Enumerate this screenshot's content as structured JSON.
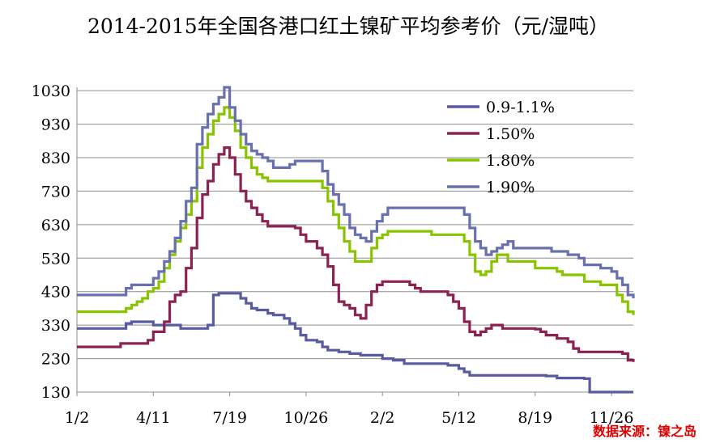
{
  "chart_data": {
    "type": "line",
    "title": "2014-2015年全国各港口红土镍矿平均参考价（元/湿吨）",
    "xlabel": "",
    "ylabel": "",
    "x_tick_labels": [
      "1/2",
      "4/11",
      "7/19",
      "10/26",
      "2/2",
      "5/12",
      "8/19",
      "11/26"
    ],
    "x_tick_index": [
      0,
      14,
      28,
      42,
      56,
      70,
      84,
      98
    ],
    "y_ticks": [
      130,
      230,
      330,
      430,
      530,
      630,
      730,
      830,
      930,
      1030
    ],
    "ylim": [
      130,
      1040
    ],
    "xlim": [
      0,
      102
    ],
    "grid": true,
    "legend_position": "top-right",
    "series": [
      {
        "name": "0.9-1.1%",
        "color": "#5a5aa0",
        "points": [
          [
            0,
            320
          ],
          [
            8,
            320
          ],
          [
            9,
            335
          ],
          [
            10,
            340
          ],
          [
            13,
            340
          ],
          [
            14,
            330
          ],
          [
            18,
            330
          ],
          [
            19,
            320
          ],
          [
            22,
            320
          ],
          [
            23,
            320
          ],
          [
            24,
            330
          ],
          [
            25,
            420
          ],
          [
            26,
            425
          ],
          [
            29,
            425
          ],
          [
            30,
            410
          ],
          [
            31,
            395
          ],
          [
            32,
            380
          ],
          [
            33,
            375
          ],
          [
            35,
            365
          ],
          [
            36,
            360
          ],
          [
            38,
            350
          ],
          [
            39,
            335
          ],
          [
            40,
            320
          ],
          [
            41,
            300
          ],
          [
            42,
            285
          ],
          [
            44,
            280
          ],
          [
            45,
            265
          ],
          [
            46,
            255
          ],
          [
            48,
            250
          ],
          [
            50,
            245
          ],
          [
            52,
            240
          ],
          [
            55,
            240
          ],
          [
            56,
            230
          ],
          [
            58,
            225
          ],
          [
            60,
            215
          ],
          [
            62,
            215
          ],
          [
            66,
            215
          ],
          [
            68,
            210
          ],
          [
            70,
            200
          ],
          [
            71,
            190
          ],
          [
            72,
            180
          ],
          [
            76,
            180
          ],
          [
            80,
            180
          ],
          [
            83,
            180
          ],
          [
            86,
            178
          ],
          [
            88,
            172
          ],
          [
            91,
            172
          ],
          [
            93,
            170
          ],
          [
            94,
            130
          ],
          [
            98,
            130
          ],
          [
            102,
            130
          ]
        ]
      },
      {
        "name": "1.50%",
        "color": "#8b2252",
        "points": [
          [
            0,
            265
          ],
          [
            7,
            265
          ],
          [
            8,
            275
          ],
          [
            12,
            275
          ],
          [
            13,
            285
          ],
          [
            14,
            310
          ],
          [
            16,
            340
          ],
          [
            17,
            400
          ],
          [
            18,
            420
          ],
          [
            19,
            430
          ],
          [
            20,
            500
          ],
          [
            21,
            560
          ],
          [
            22,
            650
          ],
          [
            23,
            720
          ],
          [
            24,
            760
          ],
          [
            25,
            810
          ],
          [
            26,
            840
          ],
          [
            27,
            860
          ],
          [
            28,
            830
          ],
          [
            29,
            780
          ],
          [
            30,
            730
          ],
          [
            31,
            700
          ],
          [
            32,
            680
          ],
          [
            33,
            660
          ],
          [
            34,
            640
          ],
          [
            35,
            625
          ],
          [
            40,
            620
          ],
          [
            41,
            600
          ],
          [
            42,
            580
          ],
          [
            44,
            560
          ],
          [
            45,
            540
          ],
          [
            46,
            505
          ],
          [
            47,
            450
          ],
          [
            48,
            400
          ],
          [
            49,
            390
          ],
          [
            50,
            380
          ],
          [
            51,
            360
          ],
          [
            52,
            350
          ],
          [
            53,
            390
          ],
          [
            54,
            430
          ],
          [
            55,
            450
          ],
          [
            56,
            460
          ],
          [
            60,
            460
          ],
          [
            61,
            450
          ],
          [
            62,
            440
          ],
          [
            63,
            430
          ],
          [
            67,
            430
          ],
          [
            68,
            420
          ],
          [
            69,
            400
          ],
          [
            70,
            380
          ],
          [
            71,
            340
          ],
          [
            72,
            310
          ],
          [
            73,
            300
          ],
          [
            74,
            310
          ],
          [
            75,
            320
          ],
          [
            76,
            330
          ],
          [
            77,
            330
          ],
          [
            78,
            320
          ],
          [
            81,
            320
          ],
          [
            84,
            318
          ],
          [
            85,
            310
          ],
          [
            86,
            300
          ],
          [
            88,
            290
          ],
          [
            90,
            280
          ],
          [
            91,
            260
          ],
          [
            92,
            250
          ],
          [
            98,
            250
          ],
          [
            100,
            245
          ],
          [
            101,
            225
          ],
          [
            102,
            220
          ]
        ]
      },
      {
        "name": "1.80%",
        "color": "#88c400",
        "points": [
          [
            0,
            370
          ],
          [
            8,
            370
          ],
          [
            9,
            380
          ],
          [
            10,
            390
          ],
          [
            11,
            400
          ],
          [
            12,
            410
          ],
          [
            13,
            430
          ],
          [
            14,
            440
          ],
          [
            15,
            460
          ],
          [
            16,
            500
          ],
          [
            17,
            540
          ],
          [
            18,
            580
          ],
          [
            19,
            620
          ],
          [
            20,
            660
          ],
          [
            21,
            700
          ],
          [
            22,
            800
          ],
          [
            23,
            860
          ],
          [
            24,
            900
          ],
          [
            25,
            940
          ],
          [
            26,
            960
          ],
          [
            27,
            980
          ],
          [
            28,
            950
          ],
          [
            29,
            910
          ],
          [
            30,
            860
          ],
          [
            31,
            830
          ],
          [
            32,
            800
          ],
          [
            33,
            780
          ],
          [
            34,
            770
          ],
          [
            35,
            760
          ],
          [
            44,
            760
          ],
          [
            45,
            740
          ],
          [
            46,
            700
          ],
          [
            47,
            660
          ],
          [
            48,
            620
          ],
          [
            49,
            580
          ],
          [
            50,
            550
          ],
          [
            51,
            520
          ],
          [
            53,
            520
          ],
          [
            54,
            560
          ],
          [
            55,
            590
          ],
          [
            56,
            600
          ],
          [
            57,
            610
          ],
          [
            64,
            610
          ],
          [
            65,
            600
          ],
          [
            70,
            600
          ],
          [
            71,
            580
          ],
          [
            72,
            540
          ],
          [
            73,
            490
          ],
          [
            74,
            480
          ],
          [
            75,
            490
          ],
          [
            76,
            520
          ],
          [
            77,
            540
          ],
          [
            78,
            540
          ],
          [
            79,
            520
          ],
          [
            83,
            520
          ],
          [
            84,
            500
          ],
          [
            88,
            490
          ],
          [
            89,
            480
          ],
          [
            92,
            480
          ],
          [
            93,
            460
          ],
          [
            96,
            450
          ],
          [
            98,
            450
          ],
          [
            99,
            420
          ],
          [
            100,
            400
          ],
          [
            101,
            370
          ],
          [
            102,
            360
          ]
        ]
      },
      {
        "name": "1.90%",
        "color": "#6870b0",
        "points": [
          [
            0,
            420
          ],
          [
            8,
            420
          ],
          [
            9,
            440
          ],
          [
            10,
            450
          ],
          [
            13,
            450
          ],
          [
            14,
            470
          ],
          [
            15,
            490
          ],
          [
            16,
            520
          ],
          [
            17,
            550
          ],
          [
            18,
            590
          ],
          [
            19,
            640
          ],
          [
            20,
            700
          ],
          [
            21,
            740
          ],
          [
            22,
            870
          ],
          [
            23,
            920
          ],
          [
            24,
            960
          ],
          [
            25,
            990
          ],
          [
            26,
            1010
          ],
          [
            27,
            1040
          ],
          [
            28,
            980
          ],
          [
            29,
            940
          ],
          [
            30,
            900
          ],
          [
            31,
            870
          ],
          [
            32,
            850
          ],
          [
            33,
            840
          ],
          [
            34,
            830
          ],
          [
            35,
            820
          ],
          [
            36,
            800
          ],
          [
            38,
            800
          ],
          [
            39,
            810
          ],
          [
            40,
            820
          ],
          [
            44,
            820
          ],
          [
            45,
            790
          ],
          [
            46,
            750
          ],
          [
            47,
            720
          ],
          [
            48,
            690
          ],
          [
            49,
            660
          ],
          [
            50,
            620
          ],
          [
            51,
            600
          ],
          [
            52,
            590
          ],
          [
            53,
            580
          ],
          [
            54,
            610
          ],
          [
            55,
            640
          ],
          [
            56,
            660
          ],
          [
            57,
            680
          ],
          [
            64,
            680
          ],
          [
            70,
            680
          ],
          [
            71,
            660
          ],
          [
            72,
            620
          ],
          [
            73,
            580
          ],
          [
            74,
            560
          ],
          [
            75,
            540
          ],
          [
            76,
            550
          ],
          [
            77,
            560
          ],
          [
            78,
            570
          ],
          [
            79,
            580
          ],
          [
            80,
            560
          ],
          [
            86,
            560
          ],
          [
            87,
            550
          ],
          [
            90,
            540
          ],
          [
            92,
            530
          ],
          [
            93,
            510
          ],
          [
            96,
            500
          ],
          [
            98,
            490
          ],
          [
            99,
            470
          ],
          [
            100,
            450
          ],
          [
            101,
            420
          ],
          [
            102,
            410
          ]
        ]
      }
    ]
  },
  "source_label": "数据来源：镍之岛"
}
